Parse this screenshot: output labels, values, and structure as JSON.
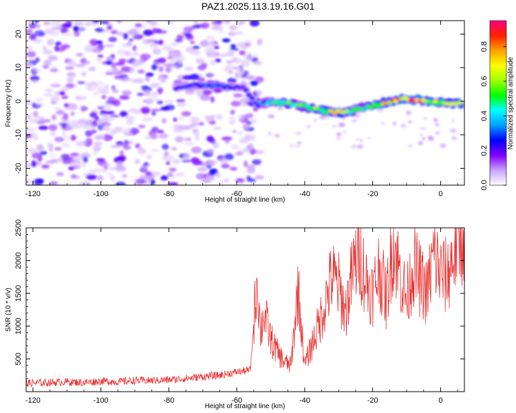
{
  "figure_title": "PAZ1.2025.113.19.16.G01",
  "chart_data": [
    {
      "type": "heatmap",
      "title": "PAZ1.2025.113.19.16.G01",
      "xlabel": "Height of straight line (km)",
      "ylabel": "Frequency (Hz)",
      "xlim": [
        -122,
        7
      ],
      "ylim": [
        -25,
        24
      ],
      "x_ticks": [
        -120,
        -100,
        -80,
        -60,
        -40,
        -20,
        0
      ],
      "y_ticks": [
        -20,
        -10,
        0,
        10,
        20
      ],
      "colorbar": {
        "label": "Normalized spectral amplitude",
        "range": [
          0,
          0.95
        ],
        "ticks": [
          0.0,
          0.2,
          0.4,
          0.6,
          0.8
        ],
        "colormap": [
          "#ffffff",
          "#c8a0ff",
          "#8000ff",
          "#0000ff",
          "#00a0ff",
          "#00ffff",
          "#00ff00",
          "#a0ff00",
          "#ffff00",
          "#ffa000",
          "#ff2000",
          "#ff0080"
        ]
      },
      "ridge": {
        "x": [
          -78,
          -74,
          -70,
          -66,
          -62,
          -58,
          -54,
          -50,
          -46,
          -42,
          -38,
          -34,
          -30,
          -26,
          -22,
          -18,
          -14,
          -10,
          -6,
          -2,
          2,
          6
        ],
        "frequency": [
          4,
          4.5,
          4.8,
          4.6,
          4.3,
          4,
          -1,
          -0.2,
          -0.6,
          -1.2,
          -2,
          -3,
          -3.3,
          -2.8,
          -1.8,
          -0.8,
          0.2,
          0.7,
          0.3,
          -0.3,
          -0.6,
          -0.7
        ],
        "amplitude": [
          0.25,
          0.3,
          0.3,
          0.35,
          0.3,
          0.25,
          0.3,
          0.45,
          0.6,
          0.55,
          0.6,
          0.65,
          0.75,
          0.55,
          0.5,
          0.75,
          0.85,
          0.85,
          0.9,
          0.7,
          0.75,
          0.8
        ]
      },
      "noise_region": {
        "x_range": [
          -122,
          -53
        ],
        "frequency_range": [
          -25,
          24
        ],
        "amplitude_range": [
          0.0,
          0.2
        ]
      }
    },
    {
      "type": "line",
      "xlabel": "Height of straight line (km)",
      "ylabel": "SNR (10 * v/v)",
      "xlim": [
        -122,
        7
      ],
      "ylim": [
        0,
        2500
      ],
      "x_ticks": [
        -120,
        -100,
        -80,
        -60,
        -40,
        -20,
        0
      ],
      "y_ticks": [
        500,
        1000,
        1500,
        2000,
        2500
      ],
      "line_color": "#e83030",
      "series": [
        {
          "x": [
            -122,
            -115,
            -110,
            -105,
            -100,
            -95,
            -90,
            -85,
            -80,
            -75,
            -70,
            -65,
            -60,
            -56,
            -54,
            -53,
            -52,
            -50,
            -48,
            -46,
            -44,
            -42,
            -40,
            -38,
            -36,
            -34,
            -32,
            -30,
            -28,
            -26,
            -24,
            -22,
            -20,
            -18,
            -16,
            -14,
            -12,
            -10,
            -8,
            -6,
            -4,
            -2,
            0,
            2,
            4,
            6
          ],
          "y": [
            130,
            140,
            150,
            140,
            160,
            150,
            170,
            170,
            180,
            200,
            230,
            250,
            300,
            330,
            1750,
            900,
            1200,
            800,
            600,
            450,
            400,
            1600,
            400,
            700,
            1000,
            1350,
            1750,
            1600,
            1200,
            1800,
            2150,
            1700,
            1500,
            1900,
            1400,
            2300,
            1800,
            1400,
            1950,
            1700,
            1500,
            2100,
            1800,
            1750,
            2150,
            2450
          ]
        }
      ]
    }
  ]
}
